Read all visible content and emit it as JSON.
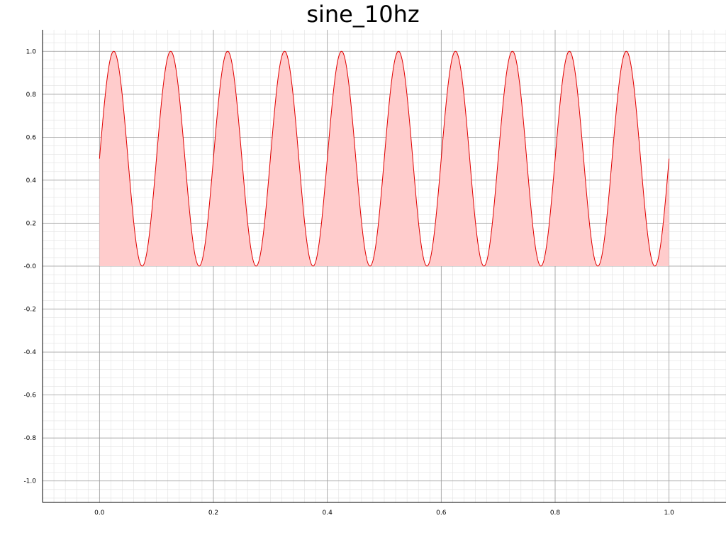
{
  "chart_data": {
    "type": "area",
    "title": "sine_10hz",
    "xlabel": "",
    "ylabel": "",
    "xlim": [
      -0.1,
      1.1
    ],
    "ylim": [
      -1.1,
      1.1
    ],
    "x_ticks": [
      0.0,
      0.2,
      0.4,
      0.6,
      0.8,
      1.0
    ],
    "x_tick_labels": [
      "0.0",
      "0.2",
      "0.4",
      "0.6",
      "0.8",
      "1.0"
    ],
    "y_ticks": [
      1.0,
      0.8,
      0.6,
      0.4,
      0.2,
      0.0,
      -0.2,
      -0.4,
      -0.6,
      -0.8,
      -1.0
    ],
    "y_tick_labels": [
      "1.0",
      "0.8",
      "0.6",
      "0.4",
      "0.2",
      "-0.0",
      "-0.2",
      "-0.4",
      "-0.6",
      "-0.8",
      "-1.0"
    ],
    "grid": true,
    "minor_grid": true,
    "legend": "none",
    "series": [
      {
        "function": "0.5 + 0.5*sin(2*pi*10*x)",
        "x_range": [
          0.0,
          1.0
        ],
        "frequency_hz": 10,
        "fill_to": 0.0,
        "color": "#e00000",
        "fill_color": "#ffcccc"
      }
    ],
    "peaks_x": [
      0.025,
      0.125,
      0.225,
      0.325,
      0.425,
      0.525,
      0.625,
      0.725,
      0.825,
      0.925
    ],
    "troughs_x": [
      0.075,
      0.175,
      0.275,
      0.375,
      0.475,
      0.575,
      0.675,
      0.775,
      0.875,
      0.975
    ]
  }
}
